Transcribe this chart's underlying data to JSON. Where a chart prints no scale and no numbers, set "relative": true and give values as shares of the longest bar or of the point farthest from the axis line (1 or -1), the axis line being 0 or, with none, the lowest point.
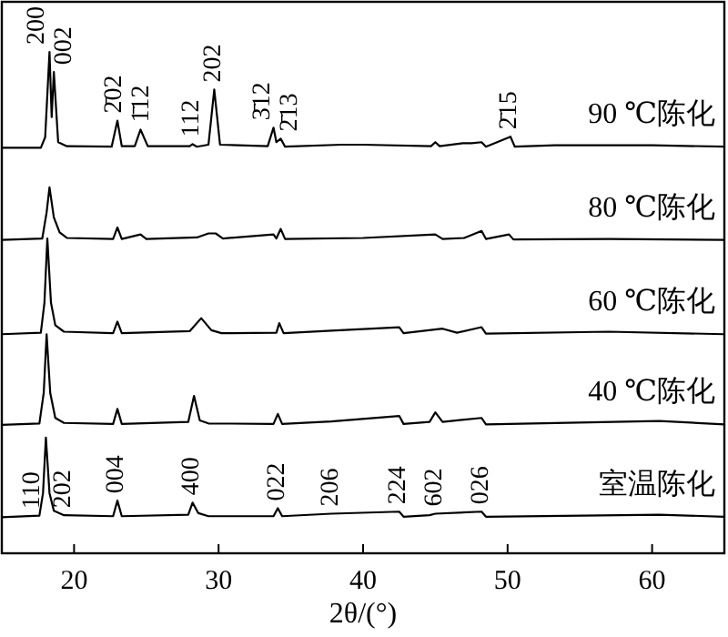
{
  "chart_data": {
    "type": "line",
    "relative": true,
    "xlabel": "2θ/(°)",
    "xlim": [
      15,
      65
    ],
    "xticks": [
      20,
      30,
      40,
      50,
      60
    ],
    "legend": false,
    "series": [
      {
        "name": "90 ℃陈化",
        "color": "#000000",
        "x": [
          15,
          17.7,
          18.0,
          18.3,
          18.45,
          18.6,
          18.9,
          19.5,
          22.6,
          23.0,
          23.3,
          24.2,
          24.6,
          25.1,
          28.0,
          28.2,
          28.5,
          29.3,
          29.7,
          30.1,
          33.4,
          33.8,
          34.0,
          34.3,
          34.6,
          38.5,
          39,
          40,
          44.7,
          45.0,
          45.3,
          46.9,
          47.5,
          48.2,
          48.5,
          50.2,
          50.5,
          53.3,
          56,
          60,
          65
        ],
        "values": [
          0.809,
          0.809,
          0.83,
          1.0,
          0.87,
          0.96,
          0.82,
          0.812,
          0.811,
          0.863,
          0.812,
          0.812,
          0.845,
          0.812,
          0.812,
          0.816,
          0.811,
          0.815,
          0.925,
          0.815,
          0.812,
          0.849,
          0.82,
          0.827,
          0.811,
          0.815,
          0.815,
          0.815,
          0.812,
          0.82,
          0.812,
          0.818,
          0.818,
          0.82,
          0.811,
          0.831,
          0.811,
          0.814,
          0.814,
          0.814,
          0.811
        ]
      },
      {
        "name": "80 ℃陈化",
        "color": "#000000",
        "x": [
          15,
          17.8,
          18.1,
          18.3,
          18.6,
          19,
          19.5,
          22.7,
          23.0,
          23.3,
          24.6,
          25,
          28.5,
          29.3,
          29.8,
          30.3,
          33.8,
          34.0,
          34.3,
          34.6,
          40,
          45,
          45.5,
          47,
          48.2,
          48.5,
          50.1,
          50.4,
          57,
          65
        ],
        "values": [
          0.625,
          0.628,
          0.68,
          0.73,
          0.67,
          0.64,
          0.629,
          0.627,
          0.65,
          0.627,
          0.636,
          0.627,
          0.63,
          0.638,
          0.638,
          0.628,
          0.636,
          0.628,
          0.647,
          0.627,
          0.629,
          0.636,
          0.627,
          0.629,
          0.643,
          0.627,
          0.636,
          0.626,
          0.627,
          0.625
        ]
      },
      {
        "name": "60 ℃陈化",
        "color": "#000000",
        "x": [
          15,
          17.7,
          17.95,
          18.15,
          18.4,
          18.7,
          19.3,
          22.7,
          23.0,
          23.3,
          28.0,
          28.8,
          29.5,
          30.2,
          34.0,
          34.2,
          34.5,
          37.8,
          42.5,
          42.8,
          45.5,
          46.5,
          48.2,
          48.5,
          57,
          65
        ],
        "values": [
          0.437,
          0.44,
          0.5,
          0.628,
          0.5,
          0.455,
          0.442,
          0.439,
          0.462,
          0.439,
          0.443,
          0.469,
          0.445,
          0.439,
          0.44,
          0.459,
          0.439,
          0.444,
          0.451,
          0.439,
          0.448,
          0.44,
          0.451,
          0.438,
          0.442,
          0.437
        ]
      },
      {
        "name": "40 ℃陈化",
        "color": "#000000",
        "x": [
          15,
          17.6,
          17.9,
          18.1,
          18.35,
          18.7,
          19.3,
          22.7,
          23.0,
          23.3,
          27.9,
          28.3,
          28.7,
          29.3,
          33.8,
          34.1,
          34.4,
          37.8,
          42.5,
          42.8,
          44.6,
          45.0,
          45.5,
          48.2,
          48.5,
          60.5,
          65
        ],
        "values": [
          0.256,
          0.259,
          0.32,
          0.437,
          0.32,
          0.27,
          0.26,
          0.258,
          0.288,
          0.258,
          0.262,
          0.314,
          0.265,
          0.259,
          0.258,
          0.278,
          0.258,
          0.263,
          0.274,
          0.258,
          0.262,
          0.281,
          0.262,
          0.27,
          0.257,
          0.264,
          0.257
        ]
      },
      {
        "name": "室温陈化",
        "color": "#000000",
        "x": [
          15,
          17.6,
          17.85,
          18.05,
          18.3,
          18.6,
          19.3,
          22.7,
          23.0,
          23.3,
          27.9,
          28.2,
          28.6,
          29.3,
          33.8,
          34.1,
          34.4,
          37.8,
          42.5,
          42.8,
          44.6,
          45,
          48.2,
          48.5,
          60.5,
          65
        ],
        "values": [
          0.072,
          0.075,
          0.12,
          0.231,
          0.12,
          0.085,
          0.076,
          0.074,
          0.105,
          0.074,
          0.077,
          0.101,
          0.08,
          0.074,
          0.074,
          0.09,
          0.074,
          0.079,
          0.083,
          0.073,
          0.076,
          0.079,
          0.083,
          0.073,
          0.077,
          0.073
        ]
      }
    ],
    "annotations": [
      {
        "text": "200",
        "x": 18.3,
        "y": 1.0
      },
      {
        "text": "002",
        "x": 18.6,
        "y": 0.96
      },
      {
        "text": "2̄02",
        "x": 23.0,
        "y": 0.863
      },
      {
        "text": "1̄12",
        "x": 24.6,
        "y": 0.845
      },
      {
        "text": "112",
        "x": 28.2,
        "y": 0.816
      },
      {
        "text": "202",
        "x": 29.7,
        "y": 0.925
      },
      {
        "text": "3̄12",
        "x": 33.8,
        "y": 0.849
      },
      {
        "text": "2̄13",
        "x": 34.3,
        "y": 0.827
      },
      {
        "text": "2̄15",
        "x": 50.2,
        "y": 0.831
      },
      {
        "text": "110",
        "x": 17.2,
        "y": 0.074
      },
      {
        "text": "202",
        "x": 19.3,
        "y": 0.076
      },
      {
        "text": "004",
        "x": 23.0,
        "y": 0.105
      },
      {
        "text": "400",
        "x": 28.2,
        "y": 0.101
      },
      {
        "text": "022",
        "x": 34.1,
        "y": 0.09
      },
      {
        "text": "206",
        "x": 37.8,
        "y": 0.079
      },
      {
        "text": "224",
        "x": 42.5,
        "y": 0.083
      },
      {
        "text": "602",
        "x": 45,
        "y": 0.079
      },
      {
        "text": "026",
        "x": 48.2,
        "y": 0.083
      }
    ]
  }
}
